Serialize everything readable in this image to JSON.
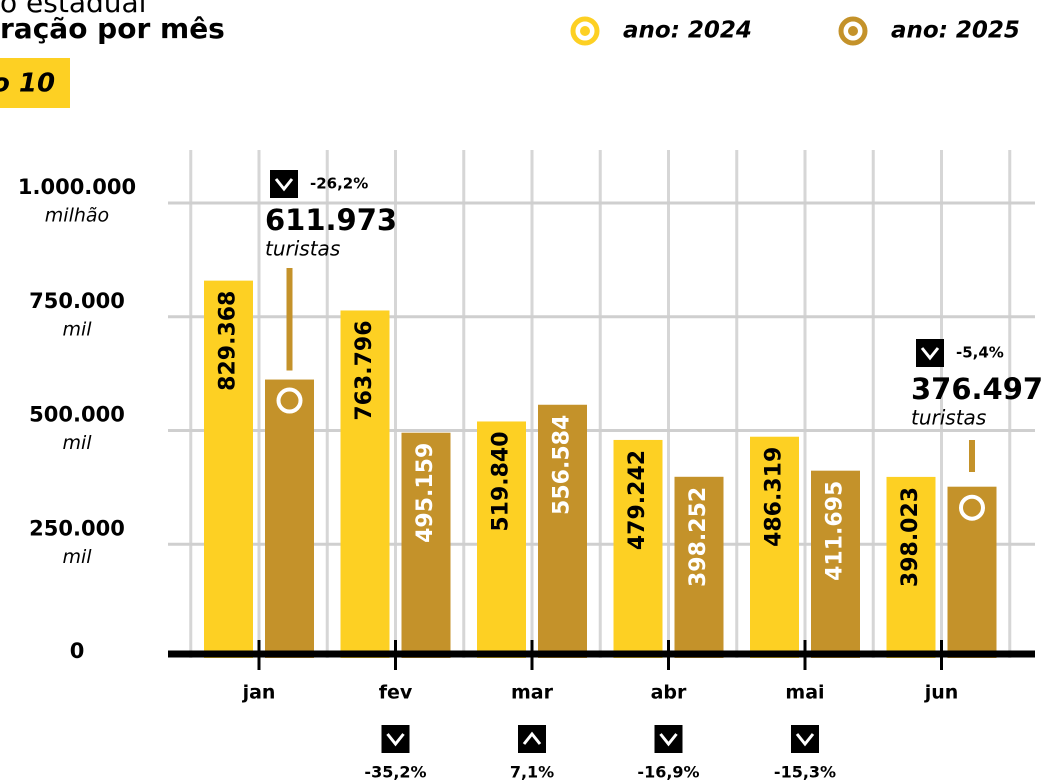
{
  "chart_data": {
    "type": "bar",
    "subtitle": "o estadual",
    "title": "ração por mês",
    "badge": "o 10",
    "categories": [
      "jan",
      "fev",
      "mar",
      "abr",
      "mai",
      "jun"
    ],
    "series": [
      {
        "name": "ano: 2024",
        "color": "#fdd023",
        "values": [
          829368,
          763796,
          519840,
          479242,
          486319,
          398023
        ],
        "value_labels": [
          "829.368",
          "763.796",
          "519.840",
          "479.242",
          "486.319",
          "398.023"
        ]
      },
      {
        "name": "ano: 2025",
        "color": "#c4922a",
        "values": [
          611973,
          495159,
          556584,
          398252,
          411695,
          376497
        ],
        "value_labels": [
          "611.973",
          "495.159",
          "556.584",
          "398.252",
          "411.695",
          "376.497"
        ]
      }
    ],
    "callout_unit": "turistas",
    "changes": {
      "values": [
        -26.2,
        -35.2,
        7.1,
        -16.9,
        -15.3,
        -5.4
      ],
      "value_labels": [
        "-26,2%",
        "-35,2%",
        "7,1%",
        "-16,9%",
        "-15,3%",
        "-5,4%"
      ]
    },
    "ylim": [
      0,
      1000000
    ],
    "yticks": [
      0,
      {
        "value": 250000,
        "label": "250.000",
        "unit": "mil"
      },
      {
        "value": 500000,
        "label": "500.000",
        "unit": "mil"
      },
      {
        "value": 750000,
        "label": "750.000",
        "unit": "mil"
      },
      {
        "value": 1000000,
        "label": "1.000.000",
        "unit": "milhão"
      }
    ],
    "grid": true
  }
}
